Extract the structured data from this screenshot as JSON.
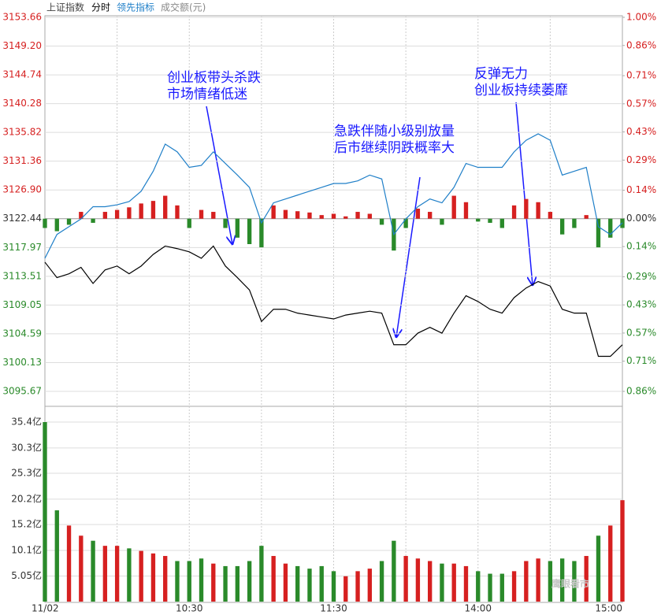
{
  "tabs": {
    "mode": "分时"
  },
  "watermark": "鹰眼看市",
  "chart_data": [
    {
      "type": "line",
      "prev_close": 3122.44,
      "xlim": [
        0,
        240
      ],
      "xticks": [
        {
          "value": 0,
          "label": "11/02"
        },
        {
          "value": 60,
          "label": "10:30"
        },
        {
          "value": 120,
          "label": "11:30"
        },
        {
          "value": 180,
          "label": "14:00"
        },
        {
          "value": 240,
          "label": "15:00"
        }
      ],
      "ylim": [
        3095.67,
        3153.66
      ],
      "yticks": [
        {
          "value": 3153.66,
          "label": "3153.66"
        },
        {
          "value": 3149.2,
          "label": "3149.20"
        },
        {
          "value": 3144.74,
          "label": "3144.74"
        },
        {
          "value": 3140.28,
          "label": "3140.28"
        },
        {
          "value": 3135.82,
          "label": "3135.82"
        },
        {
          "value": 3131.36,
          "label": "3131.36"
        },
        {
          "value": 3126.9,
          "label": "3126.90"
        },
        {
          "value": 3122.44,
          "label": "3122.44"
        },
        {
          "value": 3117.97,
          "label": "3117.97"
        },
        {
          "value": 3113.51,
          "label": "3113.51"
        },
        {
          "value": 3109.05,
          "label": "3109.05"
        },
        {
          "value": 3104.59,
          "label": "3104.59"
        },
        {
          "value": 3100.13,
          "label": "3100.13"
        },
        {
          "value": 3095.67,
          "label": "3095.67"
        }
      ],
      "y2lim": [
        -0.86,
        1.0
      ],
      "y2ticks": [
        {
          "value": 1.0,
          "label": "1.00%"
        },
        {
          "value": 0.86,
          "label": "0.86%"
        },
        {
          "value": 0.71,
          "label": "0.71%"
        },
        {
          "value": 0.57,
          "label": "0.57%"
        },
        {
          "value": 0.43,
          "label": "0.43%"
        },
        {
          "value": 0.29,
          "label": "0.29%"
        },
        {
          "value": 0.14,
          "label": "0.14%"
        },
        {
          "value": 0,
          "label": "0.00%"
        },
        {
          "value": -0.14,
          "label": "0.14%"
        },
        {
          "value": -0.29,
          "label": "0.29%"
        },
        {
          "value": -0.43,
          "label": "0.43%"
        },
        {
          "value": -0.57,
          "label": "0.57%"
        },
        {
          "value": -0.71,
          "label": "0.71%"
        },
        {
          "value": -0.86,
          "label": "0.86%"
        }
      ],
      "x": [
        0,
        5,
        10,
        15,
        20,
        25,
        30,
        35,
        40,
        45,
        50,
        55,
        60,
        65,
        70,
        75,
        80,
        85,
        90,
        95,
        100,
        105,
        110,
        115,
        120,
        125,
        130,
        135,
        140,
        145,
        150,
        155,
        160,
        165,
        170,
        175,
        180,
        185,
        190,
        195,
        200,
        205,
        210,
        215,
        220,
        225,
        230,
        235,
        240
      ],
      "series": [
        {
          "name": "上证指数",
          "color": "#000000",
          "values": [
            3115.7,
            3113.3,
            3113.9,
            3114.9,
            3112.4,
            3114.5,
            3115.1,
            3113.9,
            3115.1,
            3116.9,
            3118.2,
            3117.8,
            3117.3,
            3116.3,
            3118.2,
            3115.1,
            3113.3,
            3111.4,
            3106.5,
            3108.4,
            3108.4,
            3107.8,
            3107.5,
            3107.2,
            3106.9,
            3107.5,
            3107.8,
            3108.1,
            3107.8,
            3102.9,
            3102.9,
            3104.7,
            3105.6,
            3104.7,
            3107.8,
            3110.5,
            3109.6,
            3108.4,
            3107.8,
            3110.2,
            3111.7,
            3112.7,
            3112.0,
            3108.4,
            3107.8,
            3107.8,
            3101.1,
            3101.1,
            3102.9
          ]
        },
        {
          "name": "领先指标",
          "color": "#1f7fc8",
          "values": [
            3116.3,
            3120.0,
            3121.2,
            3122.4,
            3124.3,
            3124.3,
            3124.6,
            3125.1,
            3126.7,
            3129.8,
            3134.0,
            3132.8,
            3130.4,
            3130.7,
            3132.8,
            3131.0,
            3129.2,
            3127.3,
            3121.8,
            3124.9,
            3125.5,
            3126.1,
            3126.7,
            3127.3,
            3127.9,
            3127.9,
            3128.3,
            3129.2,
            3128.6,
            3120.0,
            3122.4,
            3124.3,
            3125.5,
            3124.9,
            3127.3,
            3131.0,
            3130.4,
            3130.4,
            3130.4,
            3132.8,
            3134.6,
            3135.6,
            3134.6,
            3129.2,
            3129.8,
            3130.4,
            3121.2,
            3120.0,
            3121.8
          ]
        }
      ],
      "bars": {
        "up_color": "#d62020",
        "down_color": "#2a8a2a",
        "values": [
          3121.0,
          3120.5,
          3121.5,
          3123.5,
          3121.8,
          3123.5,
          3123.8,
          3124.2,
          3124.8,
          3125.2,
          3126.0,
          3124.5,
          3121.0,
          3123.8,
          3123.5,
          3121.0,
          3119.5,
          3118.5,
          3118.0,
          3124.5,
          3123.8,
          3123.6,
          3123.4,
          3123.0,
          3123.2,
          3122.8,
          3123.5,
          3123.2,
          3121.5,
          3117.5,
          3121.0,
          3124.0,
          3123.5,
          3121.5,
          3126.0,
          3125.0,
          3122.0,
          3121.8,
          3121.0,
          3124.5,
          3125.5,
          3125.0,
          3123.5,
          3120.0,
          3121.0,
          3123.0,
          3118.0,
          3119.5,
          3121.0
        ]
      },
      "annotations": [
        {
          "lines": [
            "创业板带头杀跌",
            "市场情绪低迷"
          ]
        },
        {
          "lines": [
            "急跌伴随小级别放量",
            "后市继续阴跌概率大"
          ]
        },
        {
          "lines": [
            "反弹无力",
            "创业板持续萎靡"
          ]
        }
      ]
    },
    {
      "type": "bar",
      "title": "成交额(元)",
      "ylim": [
        0,
        35.4
      ],
      "yticks": [
        {
          "value": 35.4,
          "label": "35.4亿"
        },
        {
          "value": 30.3,
          "label": "30.3亿"
        },
        {
          "value": 25.3,
          "label": "25.3亿"
        },
        {
          "value": 20.2,
          "label": "20.2亿"
        },
        {
          "value": 15.2,
          "label": "15.2亿"
        },
        {
          "value": 10.1,
          "label": "10.1亿"
        },
        {
          "value": 5.05,
          "label": "5.05亿"
        }
      ],
      "values": [
        35.4,
        18,
        15,
        13,
        12,
        11,
        11,
        10.5,
        10,
        9.5,
        9,
        8,
        8,
        8.5,
        7.5,
        7,
        7,
        8,
        11,
        9,
        7.5,
        7,
        6.5,
        7,
        6,
        5,
        6,
        6.5,
        8,
        12,
        9,
        8.5,
        8,
        7.5,
        7.5,
        7,
        6,
        5.5,
        5.5,
        6,
        8,
        8.5,
        8,
        8.5,
        8,
        9,
        13,
        15,
        20
      ]
    }
  ]
}
